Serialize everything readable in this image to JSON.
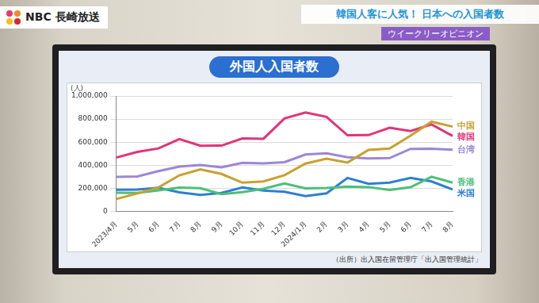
{
  "header": {
    "logo": "NBC 長崎放送",
    "banner": "韓国人客に人気！ 日本への入国者数",
    "tag": "ウイークリーオピニオン"
  },
  "source": "（出所）出入国在留管理庁「出入国管理統計」",
  "chart_data": {
    "type": "line",
    "title": "外国人入国者数",
    "ylabel": "(人)",
    "categories": [
      "2023/4月",
      "5月",
      "6月",
      "7月",
      "8月",
      "9月",
      "10月",
      "11月",
      "12月",
      "2024/1月",
      "2月",
      "3月",
      "4月",
      "5月",
      "6月",
      "7月",
      "8月"
    ],
    "series": [
      {
        "name": "中国",
        "color": "#c9a02e",
        "values": [
          108000,
          156000,
          208000,
          313000,
          365000,
          325000,
          249000,
          260000,
          314000,
          415000,
          457000,
          424000,
          533000,
          545000,
          657000,
          777000,
          735000
        ]
      },
      {
        "name": "韓国",
        "color": "#e0357a",
        "values": [
          467000,
          516000,
          546000,
          627000,
          569000,
          570000,
          632000,
          630000,
          805000,
          857000,
          819000,
          660000,
          661000,
          725000,
          697000,
          754000,
          654000
        ]
      },
      {
        "name": "台湾",
        "color": "#9b87d8",
        "values": [
          300000,
          303000,
          349000,
          389000,
          402000,
          382000,
          422000,
          417000,
          427000,
          493000,
          504000,
          469000,
          459000,
          462000,
          542000,
          544000,
          535000
        ]
      },
      {
        "name": "香港",
        "color": "#4cbf78",
        "values": [
          162000,
          161000,
          183000,
          206000,
          201000,
          150000,
          168000,
          197000,
          242000,
          200000,
          203000,
          215000,
          211000,
          187000,
          210000,
          300000,
          250000
        ]
      },
      {
        "name": "米国",
        "color": "#2f7fd1",
        "values": [
          188000,
          190000,
          205000,
          165000,
          143000,
          160000,
          208000,
          181000,
          170000,
          133000,
          157000,
          290000,
          240000,
          250000,
          290000,
          260000,
          190000
        ]
      }
    ],
    "ylim": [
      0,
      1000000
    ],
    "yticks": [
      0,
      {
        "value": 200000,
        "label": "200,000"
      },
      {
        "value": 400000,
        "label": "400,000"
      },
      {
        "value": 600000,
        "label": "600,000"
      },
      {
        "value": 800000,
        "label": "800,000"
      },
      {
        "value": 1000000,
        "label": "1,000,000"
      }
    ],
    "grid": true,
    "legend": "right"
  }
}
